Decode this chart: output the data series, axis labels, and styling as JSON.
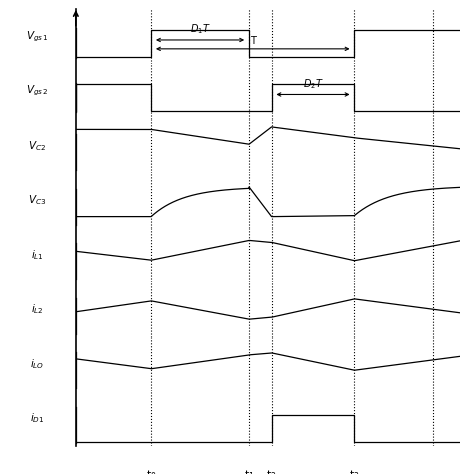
{
  "fig_width": 4.74,
  "fig_height": 4.74,
  "dpi": 100,
  "subplot_labels": [
    "$V_{gs\\,1}$",
    "$V_{gs\\,2}$",
    "$V_{C2}$",
    "$V_{C3}$",
    "$i_{L1}$",
    "$i_{L2}$",
    "$i_{LO}$",
    "$i_{D1}$"
  ],
  "t0": 0.2,
  "t1": 0.46,
  "t2": 0.52,
  "t3": 0.74,
  "tend": 0.95,
  "tstart": 0.0,
  "textend": 1.02
}
